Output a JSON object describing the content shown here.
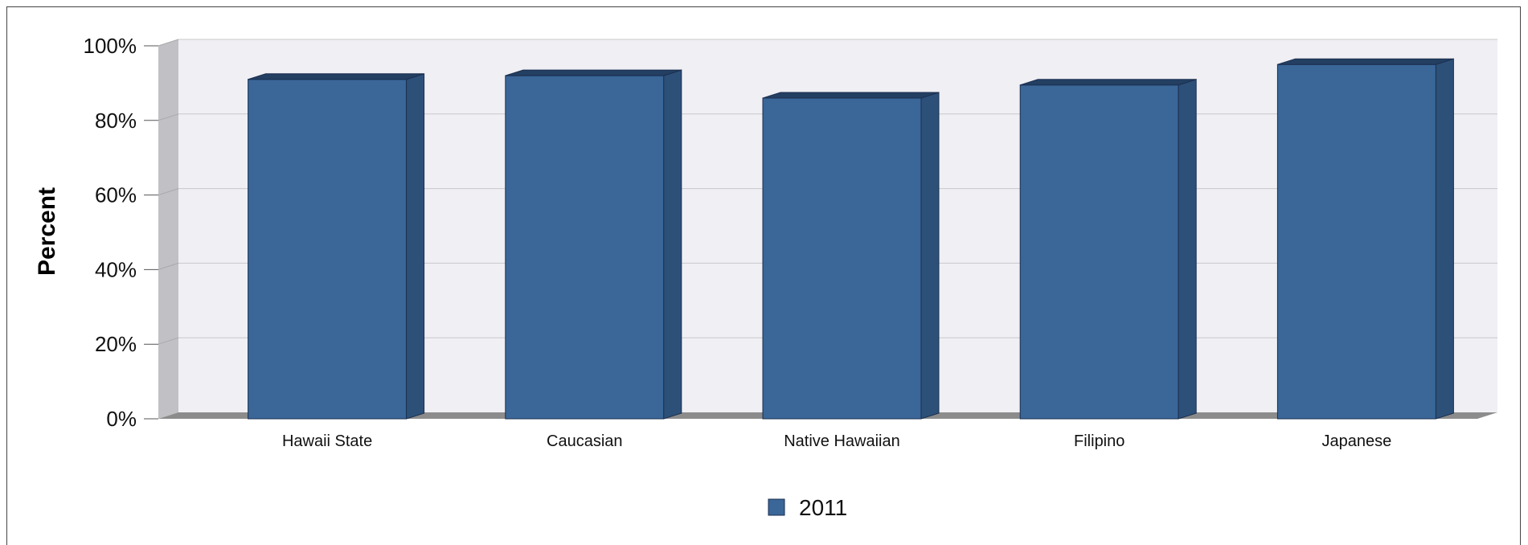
{
  "chart_data": {
    "type": "bar",
    "title": "",
    "xlabel": "",
    "ylabel": "Percent",
    "categories": [
      "Hawaii State",
      "Caucasian",
      "Native Hawaiian",
      "Filipino",
      "Japanese"
    ],
    "series": [
      {
        "name": "2011",
        "values": [
          91,
          92,
          86,
          89.5,
          95
        ],
        "color": "#3a6698"
      }
    ],
    "ylim": [
      0,
      100
    ],
    "yticks": [
      0,
      20,
      40,
      60,
      80,
      100
    ],
    "ytick_labels": [
      "0%",
      "20%",
      "40%",
      "60%",
      "80%",
      "100%"
    ],
    "grid": true,
    "legend_position": "bottom-center",
    "style": "3d"
  }
}
